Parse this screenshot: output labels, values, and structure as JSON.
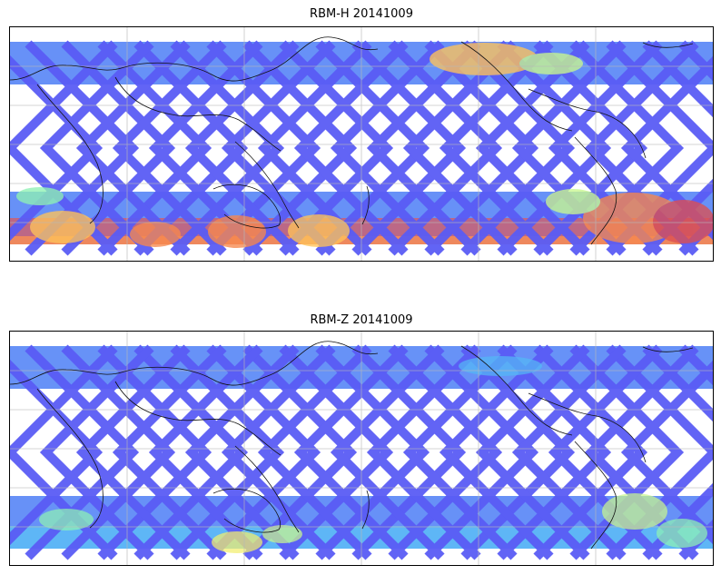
{
  "panels": [
    {
      "id": "top",
      "title": "RBM-H 20141009",
      "field": "rbm-h",
      "date": "20141009"
    },
    {
      "id": "bottom",
      "title": "RBM-Z 20141009",
      "field": "rbm-z",
      "date": "20141009"
    }
  ],
  "colormap": [
    "#5a5cf5",
    "#5f8cf7",
    "#55b7f5",
    "#5fe0e8",
    "#8ff2b4",
    "#c9f78f",
    "#f3ef6e",
    "#ffc35a",
    "#f7884e",
    "#dd4f52"
  ],
  "gridlines": true,
  "swath_style": "diagonal satellite tracks over white background with coastline overlay"
}
